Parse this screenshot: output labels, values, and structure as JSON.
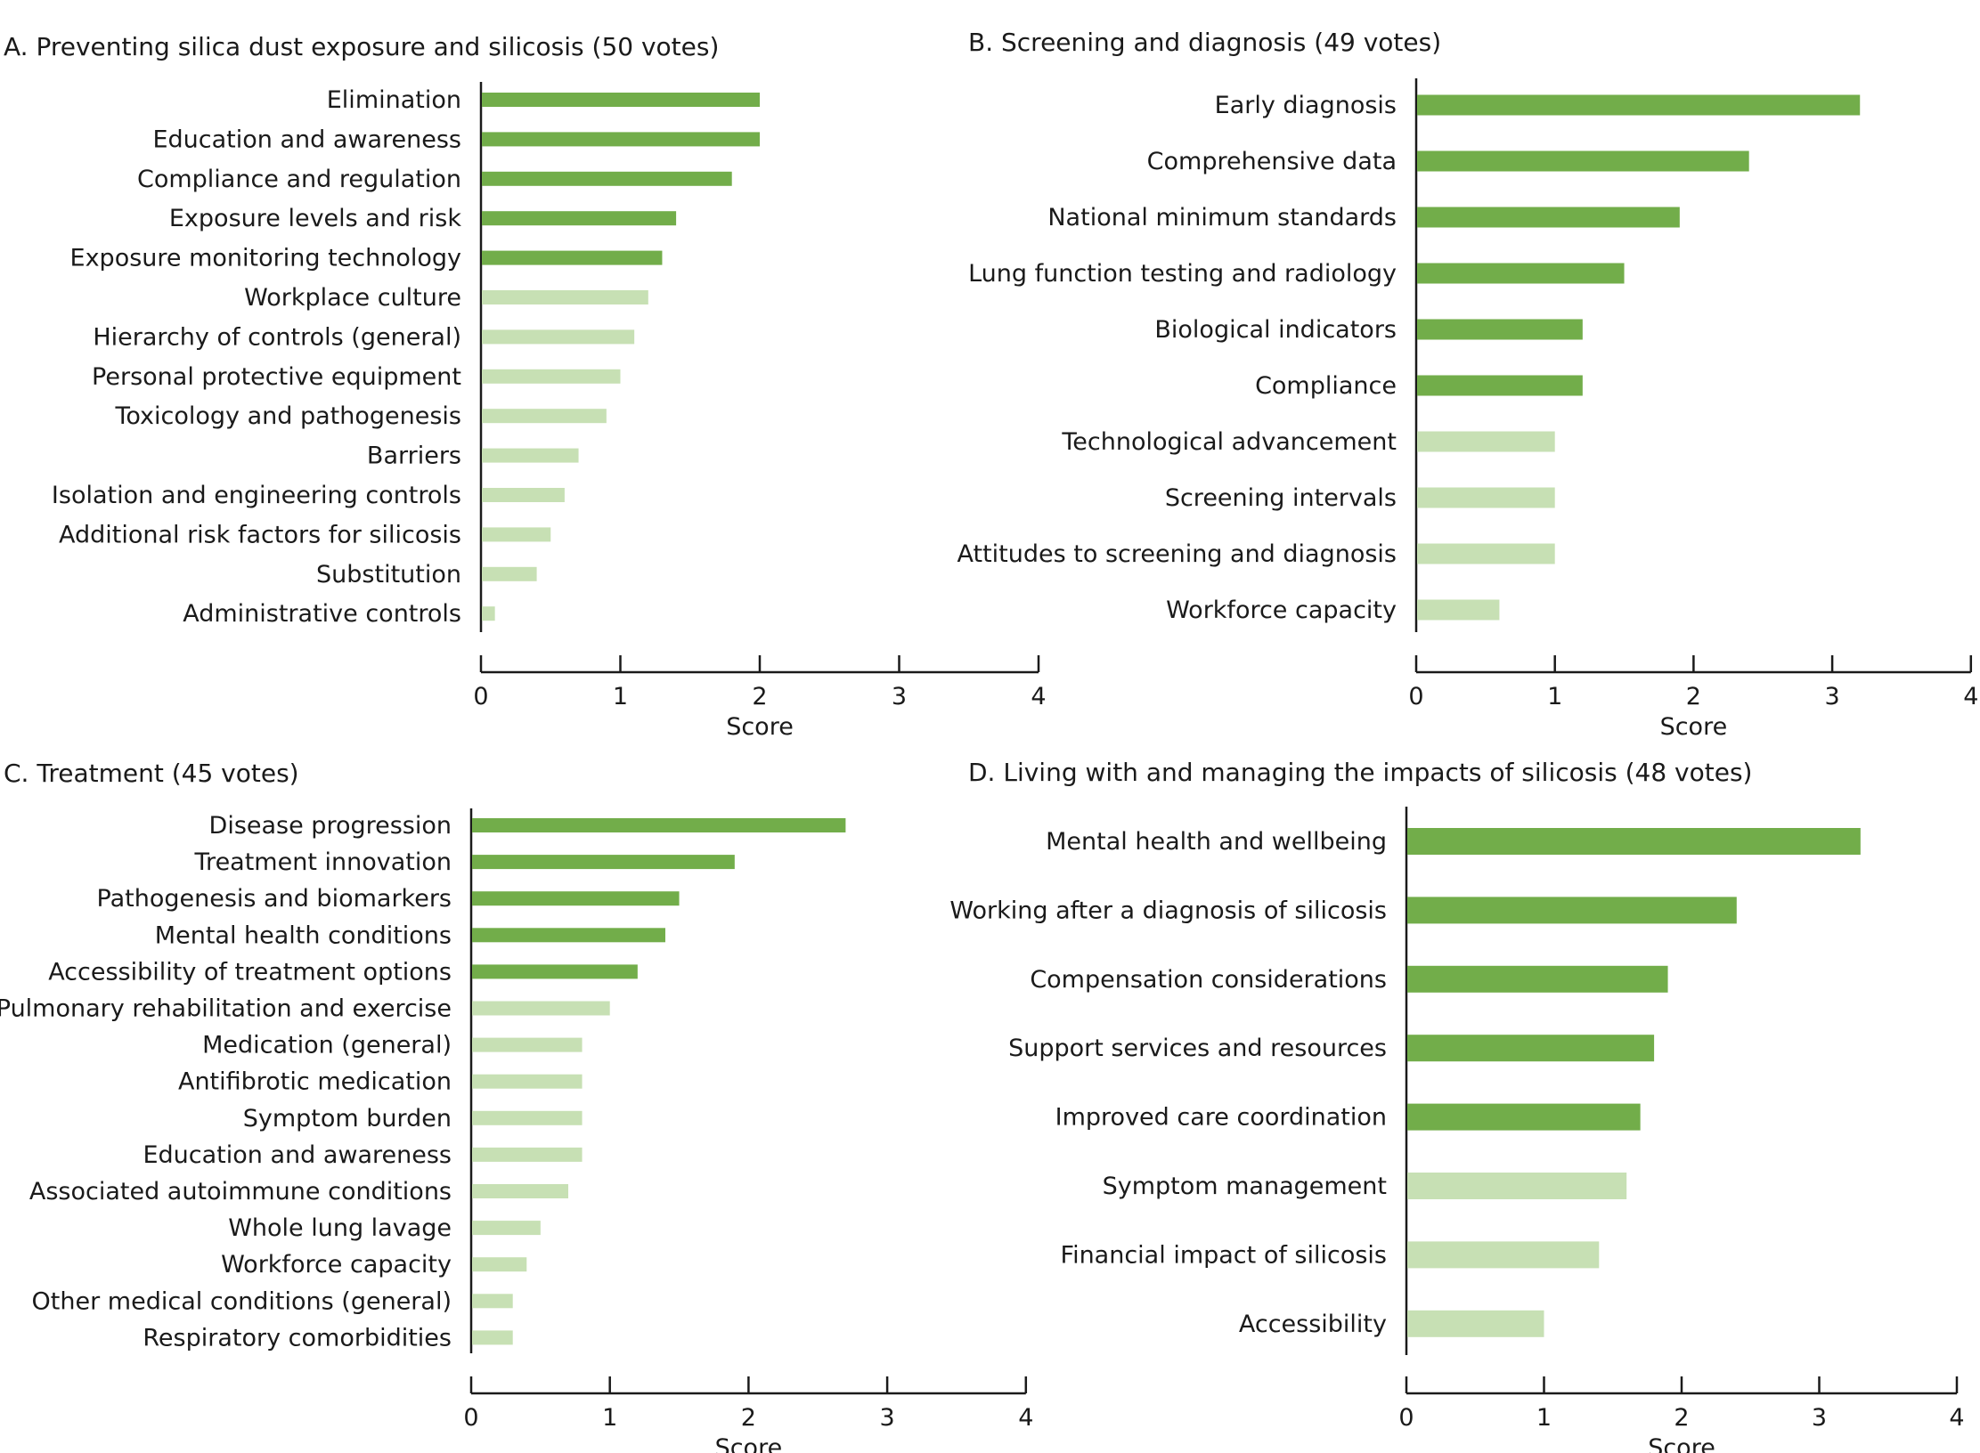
{
  "colors": {
    "top": "#72ad4a",
    "other": "#c7e0b4",
    "axis": "#1a1a1a"
  },
  "chart_data": [
    {
      "type": "bar",
      "orientation": "horizontal",
      "title": "A. Preventing silica dust exposure and silicosis (50 votes)",
      "xlabel": "Score",
      "xlim": [
        0,
        4
      ],
      "xticks": [
        "0",
        "1",
        "2",
        "3",
        "4"
      ],
      "categories": [
        "Elimination",
        "Education and awareness",
        "Compliance and regulation",
        "Exposure levels and risk",
        "Exposure monitoring technology",
        "Workplace culture",
        "Hierarchy of controls (general)",
        "Personal protective equipment",
        "Toxicology and pathogenesis",
        "Barriers",
        "Isolation and engineering controls",
        "Additional risk factors for silicosis",
        "Substitution",
        "Administrative controls"
      ],
      "values": [
        2.0,
        2.0,
        1.8,
        1.4,
        1.3,
        1.2,
        1.1,
        1.0,
        0.9,
        0.7,
        0.6,
        0.5,
        0.4,
        0.1
      ],
      "highlighted": [
        true,
        true,
        true,
        true,
        true,
        false,
        false,
        false,
        false,
        false,
        false,
        false,
        false,
        false
      ]
    },
    {
      "type": "bar",
      "orientation": "horizontal",
      "title": "B. Screening and diagnosis (49 votes)",
      "xlabel": "Score",
      "xlim": [
        0,
        4
      ],
      "xticks": [
        "0",
        "1",
        "2",
        "3",
        "4"
      ],
      "categories": [
        "Early diagnosis",
        "Comprehensive data",
        "National minimum standards",
        "Lung function testing and radiology",
        "Biological indicators",
        "Compliance",
        "Technological advancement",
        "Screening intervals",
        "Attitudes to screening and diagnosis",
        "Workforce capacity"
      ],
      "values": [
        3.2,
        2.4,
        1.9,
        1.5,
        1.2,
        1.2,
        1.0,
        1.0,
        1.0,
        0.6
      ],
      "highlighted": [
        true,
        true,
        true,
        true,
        true,
        true,
        false,
        false,
        false,
        false
      ]
    },
    {
      "type": "bar",
      "orientation": "horizontal",
      "title": "C. Treatment (45 votes)",
      "xlabel": "Score",
      "xlim": [
        0,
        4
      ],
      "xticks": [
        "0",
        "1",
        "2",
        "3",
        "4"
      ],
      "categories": [
        "Disease progression",
        "Treatment innovation",
        "Pathogenesis and biomarkers",
        "Mental health conditions",
        "Accessibility of treatment options",
        "Pulmonary rehabilitation and exercise",
        "Medication (general)",
        "Antifibrotic medication",
        "Symptom burden",
        "Education and awareness",
        "Associated autoimmune conditions",
        "Whole lung lavage",
        "Workforce capacity",
        "Other medical conditions (general)",
        "Respiratory comorbidities"
      ],
      "values": [
        2.7,
        1.9,
        1.5,
        1.4,
        1.2,
        1.0,
        0.8,
        0.8,
        0.8,
        0.8,
        0.7,
        0.5,
        0.4,
        0.3,
        0.3
      ],
      "highlighted": [
        true,
        true,
        true,
        true,
        true,
        false,
        false,
        false,
        false,
        false,
        false,
        false,
        false,
        false,
        false
      ]
    },
    {
      "type": "bar",
      "orientation": "horizontal",
      "title": "D. Living with and managing the impacts of silicosis (48 votes)",
      "xlabel": "Score",
      "xlim": [
        0,
        4
      ],
      "xticks": [
        "0",
        "1",
        "2",
        "3",
        "4"
      ],
      "categories": [
        "Mental health and wellbeing",
        "Working after a diagnosis of silicosis",
        "Compensation considerations",
        "Support services and resources",
        "Improved care coordination",
        "Symptom management",
        "Financial impact of silicosis",
        "Accessibility"
      ],
      "values": [
        3.3,
        2.4,
        1.9,
        1.8,
        1.7,
        1.6,
        1.4,
        1.0
      ],
      "highlighted": [
        true,
        true,
        true,
        true,
        true,
        false,
        false,
        false
      ]
    }
  ]
}
